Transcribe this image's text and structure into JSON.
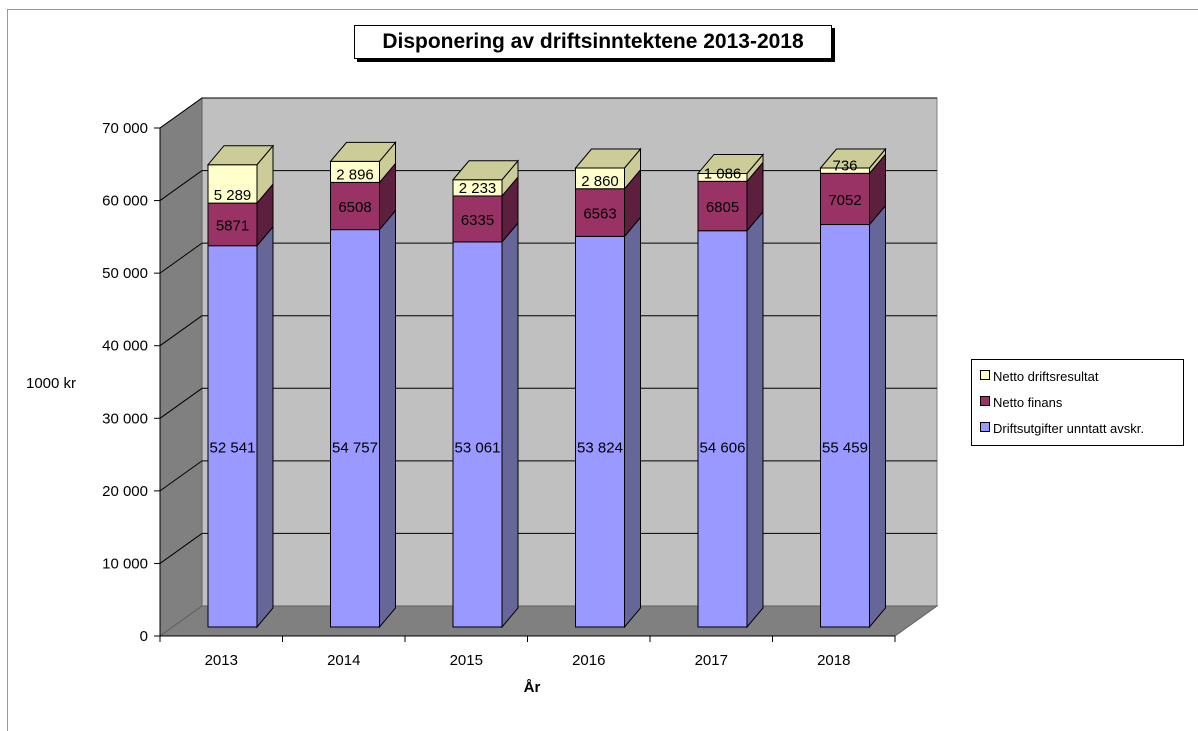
{
  "chart_data": {
    "type": "bar",
    "stacked": true,
    "three_d": true,
    "title": "Disponering av driftsinntektene 2013-2018",
    "xlabel": "År",
    "ylabel": "1000 kr",
    "categories": [
      "2013",
      "2014",
      "2015",
      "2016",
      "2017",
      "2018"
    ],
    "ylim": [
      0,
      70000
    ],
    "yticks": [
      0,
      10000,
      20000,
      30000,
      40000,
      50000,
      60000,
      70000
    ],
    "ytick_labels": [
      "0",
      "10 000",
      "20 000",
      "30 000",
      "40 000",
      "50 000",
      "60 000",
      "70 000"
    ],
    "grid": true,
    "legend_position": "right",
    "series": [
      {
        "name": "Driftsutgifter unntatt avskr.",
        "values": [
          52541,
          54757,
          53061,
          53824,
          54606,
          55459
        ],
        "labels": [
          "52 541",
          "54 757",
          "53 061",
          "53 824",
          "54 606",
          "55 459"
        ],
        "color": "#9999ff"
      },
      {
        "name": "Netto finans",
        "values": [
          5871,
          6508,
          6335,
          6563,
          6805,
          7052
        ],
        "labels": [
          "5871",
          "6508",
          "6335",
          "6563",
          "6805",
          "7052"
        ],
        "color": "#993366"
      },
      {
        "name": "Netto driftsresultat",
        "values": [
          5289,
          2896,
          2233,
          2860,
          1086,
          736
        ],
        "labels": [
          "5 289",
          "2 896",
          "2 233",
          "2 860",
          "1 086",
          "736"
        ],
        "color": "#ffffcc"
      }
    ]
  }
}
